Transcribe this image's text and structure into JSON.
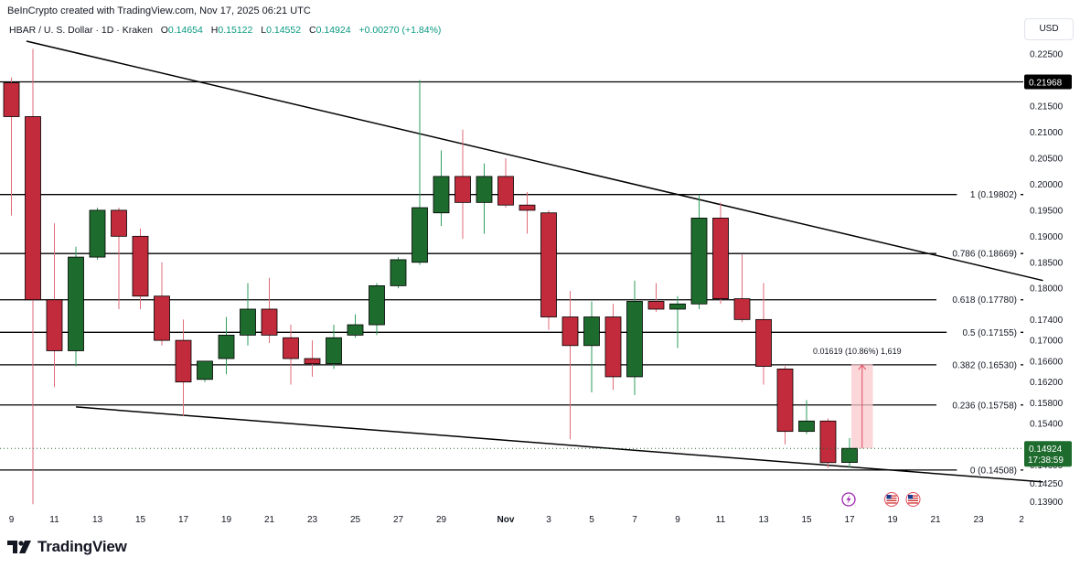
{
  "header": {
    "credit": "BeInCrypto created with TradingView.com, Nov 17, 2025 06:21 UTC",
    "symbol": "HBAR / U. S. Dollar · 1D · Kraken",
    "ohlc": {
      "o_label": "O",
      "o_value": "0.14654",
      "h_label": "H",
      "h_value": "0.15122",
      "l_label": "L",
      "l_value": "0.14552",
      "c_label": "C",
      "c_value": "0.14924",
      "change": "+0.00270 (+1.84%)"
    },
    "currency": "USD"
  },
  "brand": {
    "name": "TradingView"
  },
  "colors": {
    "up": "#1e6b2e",
    "down": "#c12b3b",
    "line": "#000000",
    "measure_fill": "#f9c9ce",
    "measure_line": "#e04b5b",
    "current": "#1e6b2e"
  },
  "chart_data": {
    "type": "candlestick",
    "ylim": [
      0.1375,
      0.2275
    ],
    "y_ticks": [
      "0.22500",
      "0.21500",
      "0.21000",
      "0.20500",
      "0.20000",
      "0.19500",
      "0.19000",
      "0.18500",
      "0.18000",
      "0.17400",
      "0.17000",
      "0.16600",
      "0.16200",
      "0.15800",
      "0.15400",
      "0.14600",
      "0.14250",
      "0.13900"
    ],
    "y_tick_values": [
      0.225,
      0.215,
      0.21,
      0.205,
      0.2,
      0.195,
      0.19,
      0.185,
      0.18,
      0.174,
      0.17,
      0.166,
      0.162,
      0.158,
      0.154,
      0.146,
      0.1425,
      0.139
    ],
    "x_labels": [
      {
        "day": 9,
        "label": "9"
      },
      {
        "day": 11,
        "label": "11"
      },
      {
        "day": 13,
        "label": "13"
      },
      {
        "day": 15,
        "label": "15"
      },
      {
        "day": 17,
        "label": "17"
      },
      {
        "day": 19,
        "label": "19"
      },
      {
        "day": 21,
        "label": "21"
      },
      {
        "day": 23,
        "label": "23"
      },
      {
        "day": 25,
        "label": "25"
      },
      {
        "day": 27,
        "label": "27"
      },
      {
        "day": 29,
        "label": "29"
      },
      {
        "day": 32,
        "label": "Nov"
      },
      {
        "day": 34,
        "label": "3"
      },
      {
        "day": 36,
        "label": "5"
      },
      {
        "day": 38,
        "label": "7"
      },
      {
        "day": 40,
        "label": "9"
      },
      {
        "day": 42,
        "label": "11"
      },
      {
        "day": 44,
        "label": "13"
      },
      {
        "day": 46,
        "label": "15"
      },
      {
        "day": 48,
        "label": "17"
      },
      {
        "day": 50,
        "label": "19"
      },
      {
        "day": 52,
        "label": "21"
      },
      {
        "day": 54,
        "label": "23"
      },
      {
        "day": 56,
        "label": "2"
      }
    ],
    "candles": [
      {
        "d": 9,
        "o": 0.2195,
        "h": 0.2205,
        "l": 0.194,
        "c": 0.213
      },
      {
        "d": 10,
        "o": 0.213,
        "h": 0.226,
        "l": 0.1385,
        "c": 0.1778
      },
      {
        "d": 11,
        "o": 0.1778,
        "h": 0.1925,
        "l": 0.161,
        "c": 0.168
      },
      {
        "d": 12,
        "o": 0.168,
        "h": 0.188,
        "l": 0.165,
        "c": 0.186
      },
      {
        "d": 13,
        "o": 0.186,
        "h": 0.1955,
        "l": 0.1855,
        "c": 0.195
      },
      {
        "d": 14,
        "o": 0.195,
        "h": 0.1955,
        "l": 0.176,
        "c": 0.19
      },
      {
        "d": 15,
        "o": 0.19,
        "h": 0.1915,
        "l": 0.176,
        "c": 0.1785
      },
      {
        "d": 16,
        "o": 0.1785,
        "h": 0.185,
        "l": 0.169,
        "c": 0.17
      },
      {
        "d": 17,
        "o": 0.17,
        "h": 0.174,
        "l": 0.1555,
        "c": 0.162
      },
      {
        "d": 18,
        "o": 0.1625,
        "h": 0.166,
        "l": 0.162,
        "c": 0.166
      },
      {
        "d": 19,
        "o": 0.1665,
        "h": 0.1745,
        "l": 0.1635,
        "c": 0.171
      },
      {
        "d": 20,
        "o": 0.171,
        "h": 0.181,
        "l": 0.169,
        "c": 0.176
      },
      {
        "d": 21,
        "o": 0.176,
        "h": 0.182,
        "l": 0.1695,
        "c": 0.171
      },
      {
        "d": 22,
        "o": 0.1705,
        "h": 0.173,
        "l": 0.1615,
        "c": 0.1665
      },
      {
        "d": 23,
        "o": 0.1665,
        "h": 0.17,
        "l": 0.163,
        "c": 0.1655
      },
      {
        "d": 24,
        "o": 0.1655,
        "h": 0.173,
        "l": 0.1645,
        "c": 0.1705
      },
      {
        "d": 25,
        "o": 0.171,
        "h": 0.175,
        "l": 0.1705,
        "c": 0.173
      },
      {
        "d": 26,
        "o": 0.173,
        "h": 0.181,
        "l": 0.171,
        "c": 0.1805
      },
      {
        "d": 27,
        "o": 0.1805,
        "h": 0.186,
        "l": 0.18,
        "c": 0.1855
      },
      {
        "d": 28,
        "o": 0.185,
        "h": 0.22,
        "l": 0.1845,
        "c": 0.1955
      },
      {
        "d": 29,
        "o": 0.1945,
        "h": 0.2065,
        "l": 0.192,
        "c": 0.2015
      },
      {
        "d": 30,
        "o": 0.2015,
        "h": 0.2105,
        "l": 0.1895,
        "c": 0.1965
      },
      {
        "d": 31,
        "o": 0.1965,
        "h": 0.204,
        "l": 0.1905,
        "c": 0.2015
      },
      {
        "d": 32,
        "o": 0.2015,
        "h": 0.205,
        "l": 0.1955,
        "c": 0.196
      },
      {
        "d": 33,
        "o": 0.196,
        "h": 0.1985,
        "l": 0.1905,
        "c": 0.195
      },
      {
        "d": 34,
        "o": 0.1945,
        "h": 0.195,
        "l": 0.172,
        "c": 0.1745
      },
      {
        "d": 35,
        "o": 0.1745,
        "h": 0.1795,
        "l": 0.151,
        "c": 0.169
      },
      {
        "d": 36,
        "o": 0.169,
        "h": 0.1775,
        "l": 0.16,
        "c": 0.1745
      },
      {
        "d": 37,
        "o": 0.1745,
        "h": 0.177,
        "l": 0.1605,
        "c": 0.163
      },
      {
        "d": 38,
        "o": 0.163,
        "h": 0.1815,
        "l": 0.1595,
        "c": 0.1775
      },
      {
        "d": 39,
        "o": 0.1775,
        "h": 0.181,
        "l": 0.1755,
        "c": 0.176
      },
      {
        "d": 40,
        "o": 0.176,
        "h": 0.1785,
        "l": 0.1685,
        "c": 0.177
      },
      {
        "d": 41,
        "o": 0.177,
        "h": 0.198,
        "l": 0.176,
        "c": 0.1935
      },
      {
        "d": 42,
        "o": 0.1935,
        "h": 0.1965,
        "l": 0.177,
        "c": 0.178
      },
      {
        "d": 43,
        "o": 0.178,
        "h": 0.1865,
        "l": 0.1735,
        "c": 0.174
      },
      {
        "d": 44,
        "o": 0.174,
        "h": 0.181,
        "l": 0.1615,
        "c": 0.165
      },
      {
        "d": 45,
        "o": 0.1645,
        "h": 0.165,
        "l": 0.15,
        "c": 0.1525
      },
      {
        "d": 46,
        "o": 0.1525,
        "h": 0.1585,
        "l": 0.152,
        "c": 0.1545
      },
      {
        "d": 47,
        "o": 0.1545,
        "h": 0.155,
        "l": 0.1455,
        "c": 0.1465
      },
      {
        "d": 48,
        "o": 0.14654,
        "h": 0.15122,
        "l": 0.14552,
        "c": 0.14924
      }
    ],
    "horizontal_lines": [
      {
        "value": 0.21968,
        "label": ""
      },
      {
        "value": 0.19802,
        "label": "1 (0.19802)"
      },
      {
        "value": 0.18669,
        "label": "0.786 (0.18669)"
      },
      {
        "value": 0.1778,
        "label": "0.618 (0.17780)"
      },
      {
        "value": 0.17155,
        "label": "0.5 (0.17155)"
      },
      {
        "value": 0.1653,
        "label": "0.382 (0.16530)"
      },
      {
        "value": 0.15758,
        "label": "0.236 (0.15758)"
      },
      {
        "value": 0.14508,
        "label": "0 (0.14508)"
      }
    ],
    "trendlines": [
      {
        "d1": 9.7,
        "v1": 0.2275,
        "d2": 57,
        "v2": 0.1815
      },
      {
        "d1": 12,
        "v1": 0.1572,
        "d2": 57,
        "v2": 0.1428
      }
    ],
    "measure": {
      "d_start": 48,
      "d_end": 49,
      "v_low": 0.14924,
      "v_high": 0.16543,
      "label": "0.01619 (10.86%) 1,619"
    },
    "price_labels": {
      "top_level": "0.21968",
      "current_price": "0.14924",
      "countdown": "17:38:59"
    },
    "events": [
      {
        "d": 48,
        "icon": "lightning-icon"
      },
      {
        "d": 50,
        "icon": "us-flag-icon"
      },
      {
        "d": 51,
        "icon": "us-flag-icon"
      }
    ]
  }
}
